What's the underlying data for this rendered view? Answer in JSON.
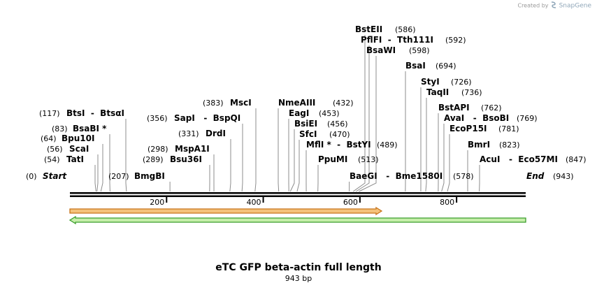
{
  "credit": {
    "prefix": "Created by",
    "brand": "SnapGene"
  },
  "map": {
    "title": "eTC GFP beta-actin full length",
    "length_label": "943 bp",
    "total_length": 943,
    "start_label": "Start",
    "start_pos": "(0)",
    "end_label": "End",
    "end_pos": "(943)",
    "ticks": [
      {
        "label": "200",
        "value": 200
      },
      {
        "label": "400",
        "value": 400
      },
      {
        "label": "600",
        "value": 600
      },
      {
        "label": "800",
        "value": 800
      }
    ],
    "features": [
      {
        "name": "forward-feature",
        "start": 0,
        "end": 645,
        "direction": "forward",
        "fill": "#f5c27a",
        "stroke": "#c8741a"
      },
      {
        "name": "reverse-feature",
        "start": 0,
        "end": 943,
        "direction": "reverse",
        "fill": "#c6eeaa",
        "stroke": "#3b9e2c"
      }
    ],
    "colors": {
      "backbone": "#000000",
      "leader": "#8c8c8c"
    }
  },
  "sites_left": [
    {
      "id": "btsi",
      "position": 117,
      "pos_text": "(117)",
      "name": "BtsI  -  BtsαI"
    },
    {
      "id": "bsabi",
      "position": 83,
      "pos_text": "(83)",
      "name": "BsaBI *"
    },
    {
      "id": "bpu10i",
      "position": 64,
      "pos_text": "(64)",
      "name": "Bpu10I"
    },
    {
      "id": "scai",
      "position": 56,
      "pos_text": "(56)",
      "name": "ScaI"
    },
    {
      "id": "tati",
      "position": 54,
      "pos_text": "(54)",
      "name": "TatI"
    },
    {
      "id": "sapi",
      "position": 356,
      "pos_text": "(356)",
      "name": "SapI   -  BspQI"
    },
    {
      "id": "msci",
      "position": 383,
      "pos_text": "(383)",
      "name": "MscI"
    },
    {
      "id": "drdi",
      "position": 331,
      "pos_text": "(331)",
      "name": "DrdI"
    },
    {
      "id": "mspa1i",
      "position": 298,
      "pos_text": "(298)",
      "name": "MspA1I"
    },
    {
      "id": "bsu36i",
      "position": 289,
      "pos_text": "(289)",
      "name": "Bsu36I"
    },
    {
      "id": "bmgbi",
      "position": 207,
      "pos_text": "(207)",
      "name": "BmgBI"
    }
  ],
  "sites_right": [
    {
      "id": "bsteii",
      "position": 586,
      "pos_text": "(586)",
      "name": "BstEII"
    },
    {
      "id": "pflfi",
      "position": 592,
      "pos_text": "(592)",
      "name": "PflFI  -  Tth111I"
    },
    {
      "id": "bsawi",
      "position": 598,
      "pos_text": "(598)",
      "name": "BsaWI"
    },
    {
      "id": "bsai",
      "position": 694,
      "pos_text": "(694)",
      "name": "BsaI"
    },
    {
      "id": "styi",
      "position": 726,
      "pos_text": "(726)",
      "name": "StyI"
    },
    {
      "id": "taqii",
      "position": 736,
      "pos_text": "(736)",
      "name": "TaqII"
    },
    {
      "id": "bstapi",
      "position": 762,
      "pos_text": "(762)",
      "name": "BstAPI"
    },
    {
      "id": "avai",
      "position": 769,
      "pos_text": "(769)",
      "name": "AvaI   -  BsoBI"
    },
    {
      "id": "ecop15i",
      "position": 781,
      "pos_text": "(781)",
      "name": "EcoP15I"
    },
    {
      "id": "bmri",
      "position": 823,
      "pos_text": "(823)",
      "name": "BmrI"
    },
    {
      "id": "acui",
      "position": 847,
      "pos_text": "(847)",
      "name": "AcuI   -  Eco57MI"
    },
    {
      "id": "nmeaiii",
      "position": 432,
      "pos_text": "(432)",
      "name": "NmeAIII"
    },
    {
      "id": "eagi",
      "position": 453,
      "pos_text": "(453)",
      "name": "EagI"
    },
    {
      "id": "bsiei",
      "position": 456,
      "pos_text": "(456)",
      "name": "BsiEI"
    },
    {
      "id": "sfci",
      "position": 470,
      "pos_text": "(470)",
      "name": "SfcI"
    },
    {
      "id": "mlfi",
      "position": 489,
      "pos_text": "(489)",
      "name": "MflI *  -  BstYI"
    },
    {
      "id": "ppumi",
      "position": 513,
      "pos_text": "(513)",
      "name": "PpuMI"
    },
    {
      "id": "baegi",
      "position": 578,
      "pos_text": "(578)",
      "name": "BaeGI   -  Bme1580I"
    }
  ]
}
